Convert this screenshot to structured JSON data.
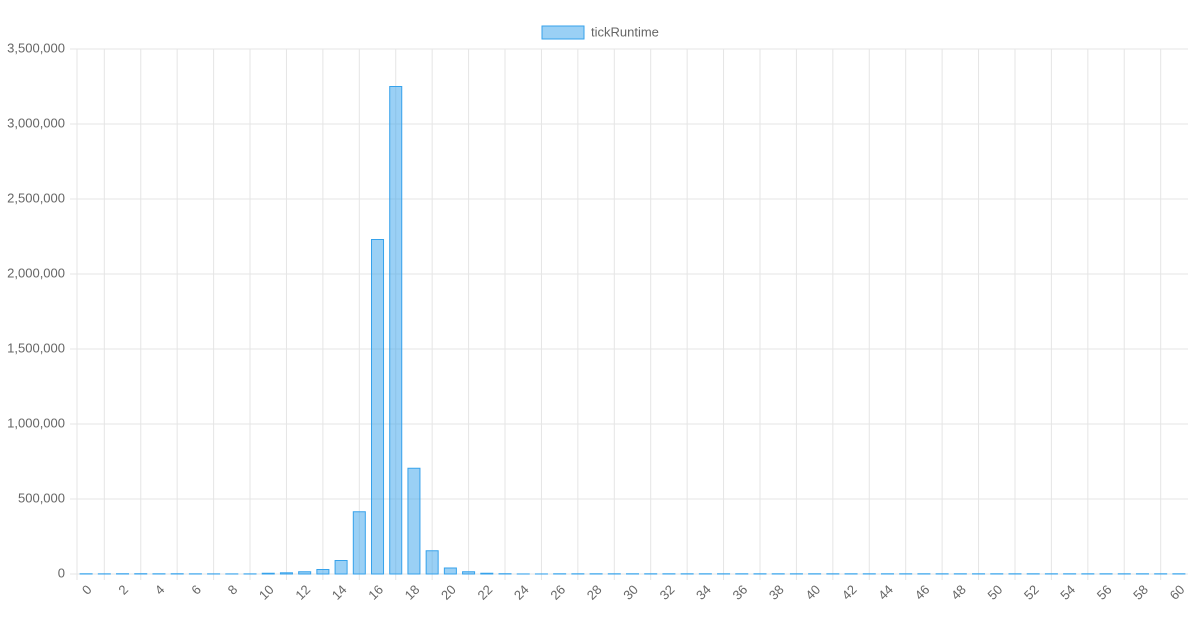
{
  "chart_data": {
    "type": "bar",
    "categories": [
      "0",
      null,
      "2",
      null,
      "4",
      null,
      "6",
      null,
      "8",
      null,
      "10",
      null,
      "12",
      null,
      "14",
      null,
      "16",
      null,
      "18",
      null,
      "20",
      null,
      "22",
      null,
      "24",
      null,
      "26",
      null,
      "28",
      null,
      "30",
      null,
      "32",
      null,
      "34",
      null,
      "36",
      null,
      "38",
      null,
      "40",
      null,
      "42",
      null,
      "44",
      null,
      "46",
      null,
      "48",
      null,
      "50",
      null,
      "52",
      null,
      "54",
      null,
      "56",
      null,
      "58",
      null,
      "60"
    ],
    "series": [
      {
        "name": "tickRuntime",
        "color": "#36a2eb",
        "values": [
          1500,
          1200,
          1800,
          2000,
          1500,
          1800,
          1200,
          1000,
          800,
          900,
          5000,
          8000,
          15000,
          30000,
          90000,
          415000,
          2230000,
          3250000,
          705000,
          155000,
          40000,
          15000,
          5000,
          2000,
          500,
          500,
          1500,
          1500,
          1500,
          1500,
          1500,
          1500,
          1500,
          1500,
          1500,
          1500,
          1500,
          1500,
          1500,
          1500,
          1500,
          1500,
          1500,
          1500,
          1500,
          1500,
          1500,
          1500,
          1500,
          1500,
          1500,
          1500,
          1500,
          1500,
          1500,
          1500,
          1500,
          1500,
          1500,
          1500,
          1500
        ]
      }
    ],
    "ylim": [
      0,
      3500000
    ],
    "yticks": [
      0,
      {
        "value": 500000,
        "label": "500,000"
      },
      {
        "value": 1000000,
        "label": "1,000,000"
      },
      {
        "value": 1500000,
        "label": "1,500,000"
      },
      {
        "value": 2000000,
        "label": "2,000,000"
      },
      {
        "value": 2500000,
        "label": "2,500,000"
      },
      {
        "value": 3000000,
        "label": "3,000,000"
      },
      {
        "value": 3500000,
        "label": "3,500,000"
      }
    ],
    "grid": true,
    "legend": "top"
  }
}
